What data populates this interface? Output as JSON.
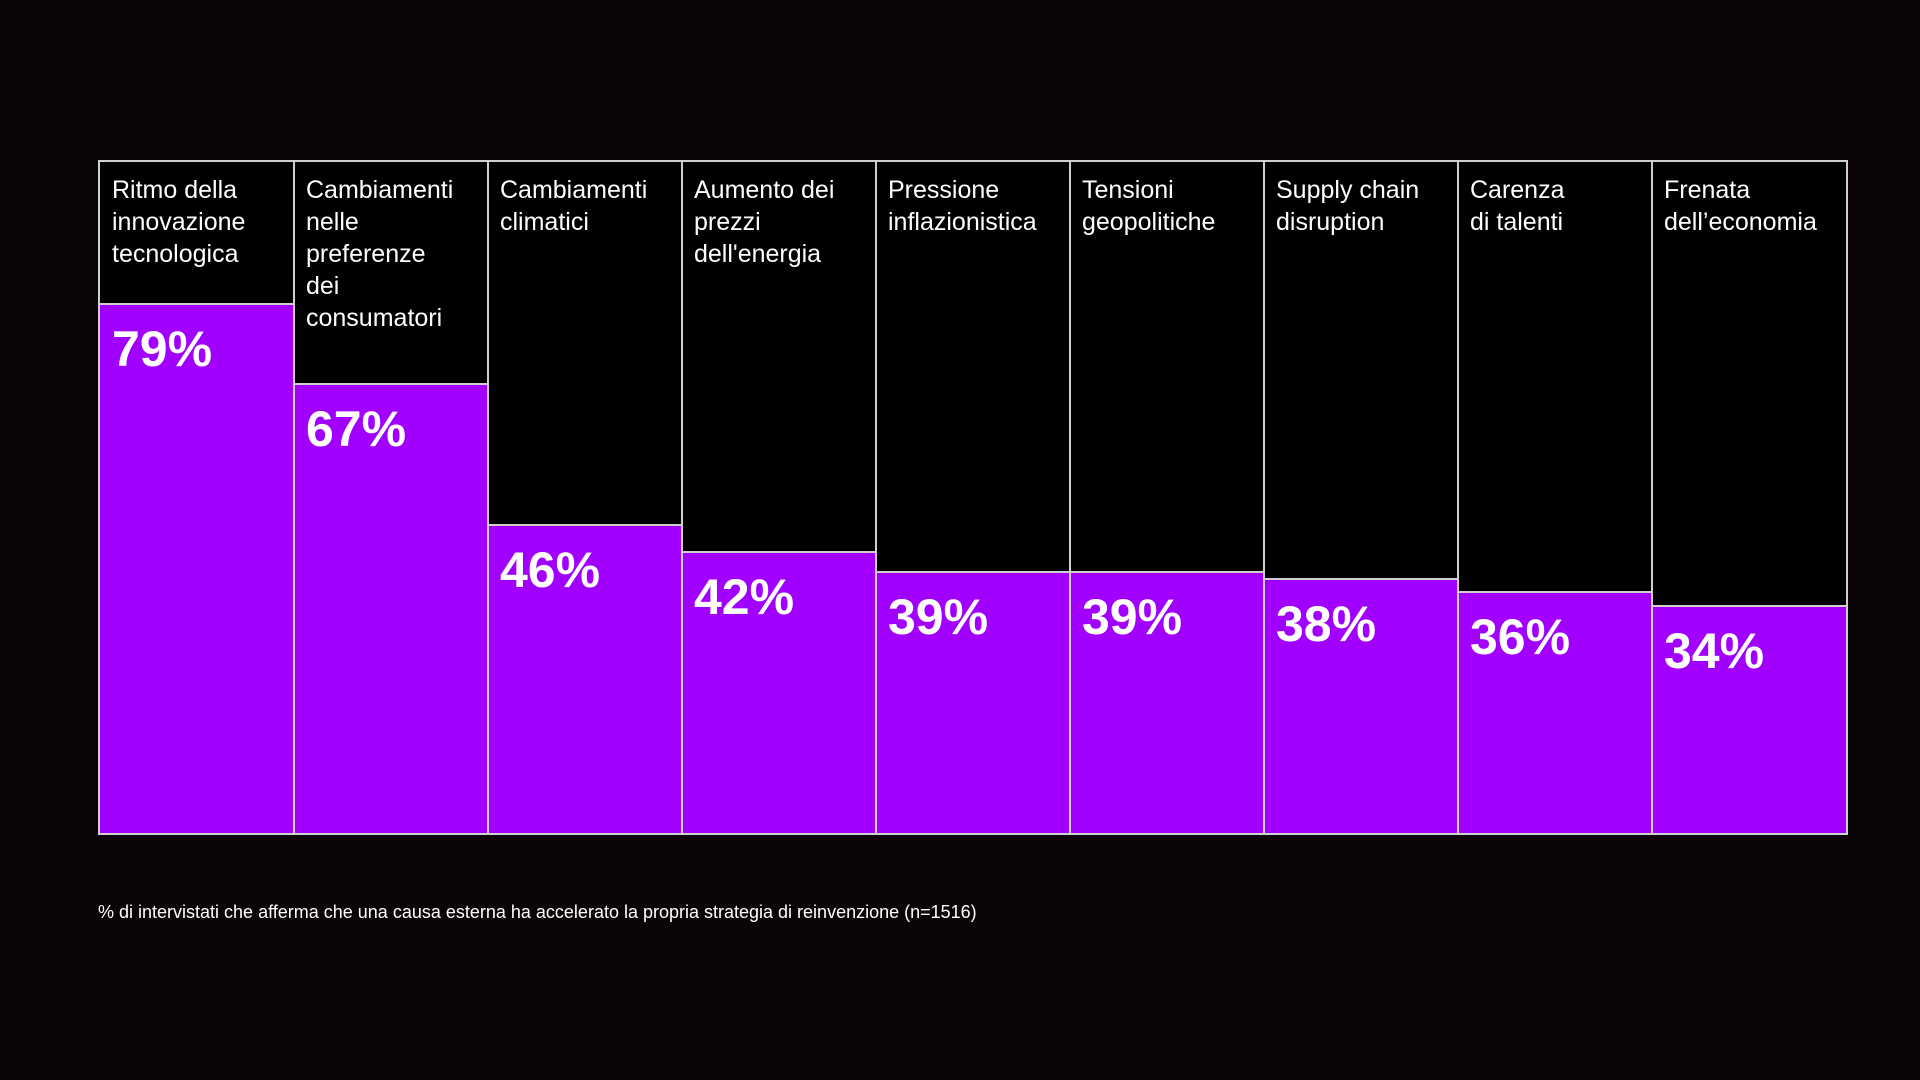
{
  "colors": {
    "background": "#0a0406",
    "panel": "#000000",
    "bar": "#a100ff",
    "border": "#cfcfcf",
    "text": "#ffffff"
  },
  "chart_data": {
    "type": "bar",
    "categories": [
      "Ritmo della\ninnovazione\ntecnologica",
      "Cambiamenti\nnelle\npreferenze\ndei\nconsumatori",
      "Cambiamenti\nclimatici",
      "Aumento dei\nprezzi\ndell'energia",
      "Pressione\ninflazionistica",
      "Tensioni\ngeopolitiche",
      "Supply chain\ndisruption",
      "Carenza\ndi talenti",
      "Frenata\ndell’economia"
    ],
    "values": [
      79,
      67,
      46,
      42,
      39,
      39,
      38,
      36,
      34
    ],
    "value_labels": [
      "79%",
      "67%",
      "46%",
      "42%",
      "39%",
      "39%",
      "38%",
      "36%",
      "34%"
    ],
    "unit": "%",
    "ylim": [
      0,
      100
    ],
    "grid": false
  },
  "footnote": "% di intervistati che afferma che una causa esterna ha accelerato la propria strategia di reinvenzione (n=1516)"
}
